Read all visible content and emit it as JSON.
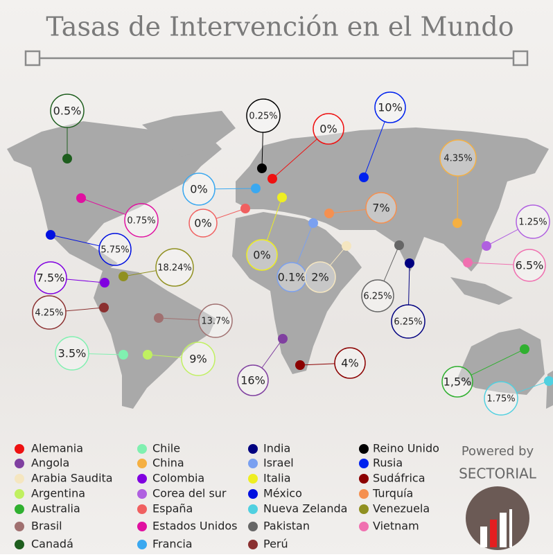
{
  "header": {
    "title": "Tasas de Intervención en el Mundo"
  },
  "callouts": [
    {
      "label": "0.5%",
      "color": "#1e5e1e"
    },
    {
      "label": "0.25%",
      "color": "#000000"
    },
    {
      "label": "0%",
      "color": "#ee1111"
    },
    {
      "label": "10%",
      "color": "#0022ee"
    },
    {
      "label": "4.35%",
      "color": "#f5b042"
    },
    {
      "label": "0%",
      "color": "#3aa8f0"
    },
    {
      "label": "0%",
      "color": "#f06060"
    },
    {
      "label": "0%",
      "color": "#eeee22"
    },
    {
      "label": "7%",
      "color": "#f59050"
    },
    {
      "label": "0.1%",
      "color": "#7aa0f0"
    },
    {
      "label": "2%",
      "color": "#f5e6c0"
    },
    {
      "label": "6.25%",
      "color": "#666666"
    },
    {
      "label": "6.25%",
      "color": "#000080"
    },
    {
      "label": "1.25%",
      "color": "#b060e0"
    },
    {
      "label": "6.5%",
      "color": "#f070b0"
    },
    {
      "label": "0.75%",
      "color": "#e010a0"
    },
    {
      "label": "5.75%",
      "color": "#0010e0"
    },
    {
      "label": "18.24%",
      "color": "#909020"
    },
    {
      "label": "7.5%",
      "color": "#8000e0"
    },
    {
      "label": "4.25%",
      "color": "#8b3030"
    },
    {
      "label": "13.7%",
      "color": "#a07070"
    },
    {
      "label": "3.5%",
      "color": "#80f0b0"
    },
    {
      "label": "9%",
      "color": "#c0f060"
    },
    {
      "label": "16%",
      "color": "#8040a0"
    },
    {
      "label": "4%",
      "color": "#8b0000"
    },
    {
      "label": "1,5%",
      "color": "#30b030"
    },
    {
      "label": "1.75%",
      "color": "#50d0e0"
    }
  ],
  "legend": [
    {
      "name": "Alemania",
      "color": "#ee1111"
    },
    {
      "name": "Angola",
      "color": "#8040a0"
    },
    {
      "name": "Arabia Saudita",
      "color": "#f5e6c0"
    },
    {
      "name": "Argentina",
      "color": "#c0f060"
    },
    {
      "name": "Australia",
      "color": "#30b030"
    },
    {
      "name": "Brasil",
      "color": "#a07070"
    },
    {
      "name": "Canadá",
      "color": "#1e5e1e"
    },
    {
      "name": "Chile",
      "color": "#80f0b0"
    },
    {
      "name": "China",
      "color": "#f5b042"
    },
    {
      "name": "Colombia",
      "color": "#8000e0"
    },
    {
      "name": "Corea del sur",
      "color": "#b060e0"
    },
    {
      "name": "España",
      "color": "#f06060"
    },
    {
      "name": "Estados Unidos",
      "color": "#e010a0"
    },
    {
      "name": "Francia",
      "color": "#3aa8f0"
    },
    {
      "name": "India",
      "color": "#000080"
    },
    {
      "name": "Israel",
      "color": "#7aa0f0"
    },
    {
      "name": "Italia",
      "color": "#eeee22"
    },
    {
      "name": "México",
      "color": "#0010e0"
    },
    {
      "name": "Nueva Zelanda",
      "color": "#50d0e0"
    },
    {
      "name": "Pakistan",
      "color": "#666666"
    },
    {
      "name": "Perú",
      "color": "#8b3030"
    },
    {
      "name": "Reino Unido",
      "color": "#000000"
    },
    {
      "name": "Rusia",
      "color": "#0022ee"
    },
    {
      "name": "Sudáfrica",
      "color": "#8b0000"
    },
    {
      "name": "Turquía",
      "color": "#f59050"
    },
    {
      "name": "Venezuela",
      "color": "#909020"
    },
    {
      "name": "Vietnam",
      "color": "#f070b0"
    }
  ],
  "footer": {
    "powered": "Powered by",
    "brand": "SECTORIAL"
  }
}
